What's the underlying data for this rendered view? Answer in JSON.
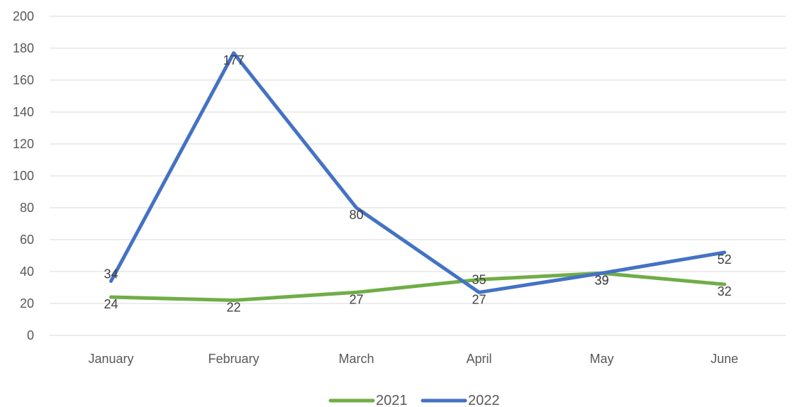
{
  "chart_data": {
    "type": "line",
    "title": "",
    "xlabel": "",
    "ylabel": "",
    "categories": [
      "January",
      "February",
      "March",
      "April",
      "May",
      "June"
    ],
    "ylim": [
      0,
      200
    ],
    "yticks": [
      0,
      20,
      40,
      60,
      80,
      100,
      120,
      140,
      160,
      180,
      200
    ],
    "grid": true,
    "legend_position": "bottom",
    "series": [
      {
        "name": "2021",
        "color": "#70AD47",
        "values": [
          24,
          22,
          27,
          35,
          39,
          32
        ]
      },
      {
        "name": "2022",
        "color": "#4472C4",
        "values": [
          34,
          177,
          80,
          27,
          39,
          52
        ]
      }
    ]
  }
}
